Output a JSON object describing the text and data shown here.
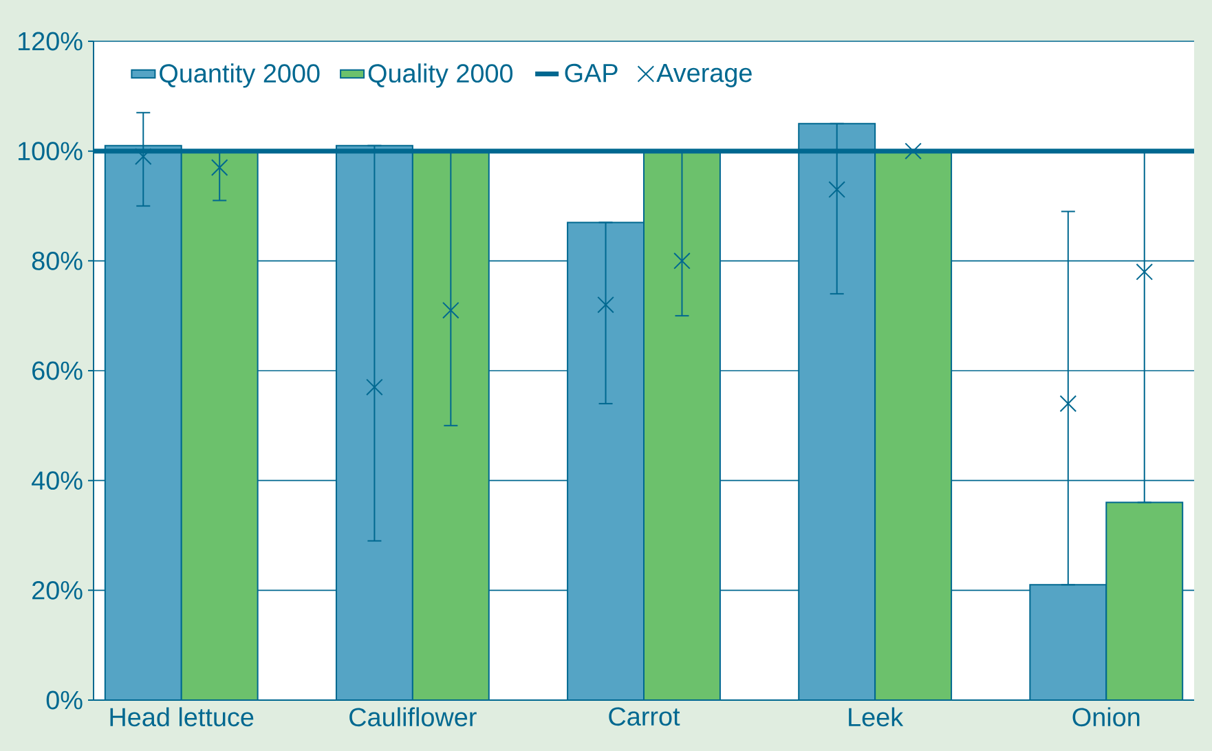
{
  "chart_data": {
    "type": "bar",
    "categories": [
      "Head lettuce",
      "Cauliflower",
      "Carrot",
      "Leek",
      "Onion"
    ],
    "series": [
      {
        "name": "Quantity 2000",
        "color": "#55a4c5",
        "values": [
          101,
          101,
          87,
          105,
          21
        ]
      },
      {
        "name": "Quality 2000",
        "color": "#6cc16c",
        "values": [
          100,
          100,
          100,
          100,
          36
        ]
      },
      {
        "name": "Average",
        "type": "scatter",
        "color": "#006890",
        "marker": "cross",
        "values": [
          99,
          57,
          72,
          93,
          54
        ],
        "errors": [
          [
            90,
            107
          ],
          [
            29,
            101
          ],
          [
            54,
            87
          ],
          [
            74,
            105
          ],
          [
            21,
            89
          ]
        ]
      },
      {
        "type": "scatter",
        "color": "#006890",
        "marker": "cross",
        "values": [
          97,
          71,
          80,
          100,
          78
        ],
        "errors": [
          [
            91,
            100
          ],
          [
            50,
            100
          ],
          [
            70,
            100
          ],
          null,
          [
            36,
            100
          ]
        ]
      }
    ],
    "ref_lines": [
      {
        "axis": "y",
        "value": 100,
        "label": "GAP",
        "color": "#006890"
      }
    ],
    "ylim": [
      0,
      120
    ],
    "yticks": [
      {
        "value": 0,
        "label": "0%"
      },
      {
        "value": 20,
        "label": "20%"
      },
      {
        "value": 40,
        "label": "40%"
      },
      {
        "value": 60,
        "label": "60%"
      },
      {
        "value": 80,
        "label": "80%"
      },
      {
        "value": 100,
        "label": "100%"
      },
      {
        "value": 120,
        "label": "120%"
      }
    ],
    "grid": "y",
    "legend": "top left"
  }
}
